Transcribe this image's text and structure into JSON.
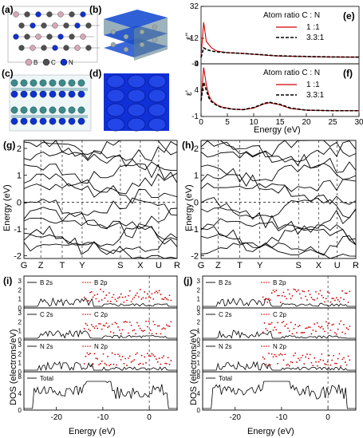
{
  "panel_labels": {
    "a": "(a)",
    "b": "(b)",
    "c": "(c)",
    "d": "(d)",
    "e": "(e)",
    "f": "(f)",
    "g": "(g)",
    "h": "(h)",
    "i": "(i)",
    "j": "(j)"
  },
  "structure_legend": {
    "b": "B",
    "c": "C",
    "n": "N",
    "b_color": "#d8a8b8",
    "c_color": "#505050",
    "n_color": "#1030d0"
  },
  "dielectric": {
    "legend_title": "Atom ratio  C : N",
    "series_names": [
      "1 :1",
      "3.3:1"
    ],
    "series_colors": [
      "#d00000",
      "#000000"
    ],
    "e_ylabel": "ε''",
    "f_ylabel": "ε'",
    "xlabel": "Energy (eV)",
    "e_yticks": [
      "32",
      "12",
      "-4"
    ],
    "f_yticks": [
      "9",
      "4",
      "-1"
    ],
    "xticks": [
      "0",
      "5",
      "10",
      "15",
      "20",
      "25",
      "30"
    ]
  },
  "bands": {
    "ylabel": "Energy (eV)",
    "yticks": [
      "2",
      "1",
      "0",
      "-1",
      "-2"
    ],
    "kpoints": [
      "G",
      "Z",
      "T",
      "Y",
      "S",
      "X",
      "U",
      "R"
    ]
  },
  "dos": {
    "ylabel": "DOS (electrons/eV)",
    "xlabel": "Energy (eV)",
    "xticks": [
      "-20",
      "-10",
      "0"
    ],
    "b_s": "B 2s",
    "b_p": "B 2p",
    "c_s": "C 2s",
    "c_p": "C 2p",
    "n_s": "N 2s",
    "n_p": "N 2p",
    "total": "Total",
    "yticks_i": {
      "b": [
        "3",
        "2",
        "1",
        "0"
      ],
      "c": [
        "3",
        "2",
        "1",
        "0"
      ],
      "n": [
        "3",
        "2",
        "1",
        "0"
      ],
      "t": [
        "8",
        "4",
        "0"
      ]
    },
    "yticks_j": {
      "b": [
        "3",
        "2",
        "1",
        "0"
      ],
      "c": [
        "3",
        "2",
        "1",
        "0"
      ],
      "n": [
        "3",
        "2",
        "1",
        "0"
      ],
      "t": [
        "8",
        "4",
        "0"
      ]
    }
  },
  "chart_data": [
    {
      "type": "line",
      "panel": "e",
      "xlabel": "Energy (eV)",
      "ylabel": "ε''",
      "xlim": [
        0,
        30
      ],
      "ylim": [
        -4,
        32
      ],
      "series": [
        {
          "name": "1 :1",
          "x": [
            0,
            0.5,
            1,
            2,
            3,
            5,
            8,
            10,
            12,
            14,
            16,
            20,
            25,
            30
          ],
          "values": [
            1,
            22,
            10,
            6,
            4,
            3,
            2.5,
            2,
            1.5,
            1,
            0.8,
            0.5,
            0.3,
            0.2
          ]
        },
        {
          "name": "3.3:1",
          "x": [
            0,
            0.5,
            1,
            2,
            3,
            5,
            8,
            10,
            12,
            14,
            16,
            20,
            25,
            30
          ],
          "values": [
            0,
            6,
            5,
            4,
            3.5,
            3,
            2.5,
            2,
            1.6,
            1.1,
            0.9,
            0.6,
            0.3,
            0.2
          ]
        }
      ]
    },
    {
      "type": "line",
      "panel": "f",
      "xlabel": "Energy (eV)",
      "ylabel": "ε'",
      "xlim": [
        0,
        30
      ],
      "ylim": [
        -1,
        9
      ],
      "series": [
        {
          "name": "1 :1",
          "x": [
            0,
            0.5,
            1,
            1.5,
            2,
            3,
            4,
            6,
            8,
            10,
            12,
            13,
            15,
            17,
            20,
            25,
            30
          ],
          "values": [
            2,
            8.3,
            5,
            3,
            2,
            1.2,
            0.8,
            0.4,
            0.3,
            0.6,
            1.4,
            1.6,
            1.2,
            0.5,
            0.2,
            0.1,
            0.1
          ]
        },
        {
          "name": "3.3:1",
          "x": [
            0,
            0.5,
            1,
            1.5,
            2,
            3,
            4,
            6,
            8,
            10,
            12,
            13,
            15,
            17,
            20,
            25,
            30
          ],
          "values": [
            2,
            5.5,
            4,
            2.5,
            1.8,
            1.1,
            0.7,
            0.4,
            0.3,
            0.7,
            1.5,
            1.7,
            1.3,
            0.6,
            0.2,
            0.1,
            0.1
          ]
        }
      ]
    }
  ]
}
